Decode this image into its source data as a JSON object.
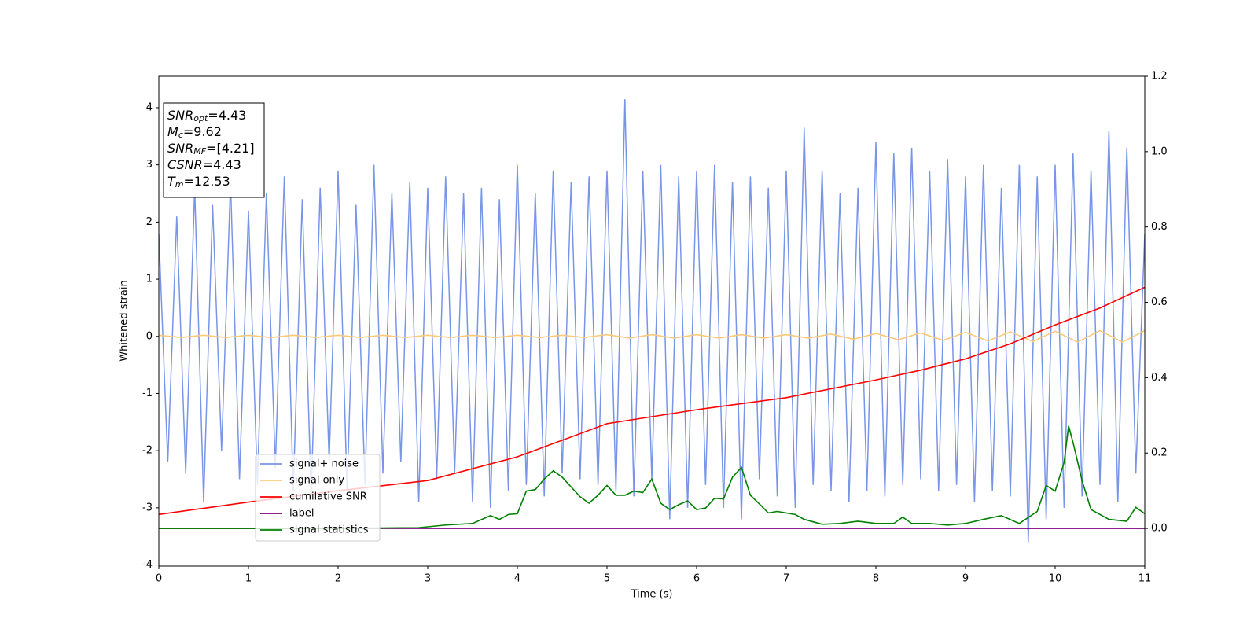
{
  "chart_data": {
    "type": "line",
    "xlabel": "Time (s)",
    "ylabel": "Whitened strain",
    "xlim": [
      0,
      11
    ],
    "xticks": [
      0,
      1,
      2,
      3,
      4,
      5,
      6,
      7,
      8,
      9,
      10,
      11
    ],
    "ylim": [
      -4.02,
      4.55
    ],
    "yticks": [
      -4,
      -3,
      -2,
      -1,
      0,
      1,
      2,
      3,
      4
    ],
    "y2lim": [
      -0.1,
      1.2
    ],
    "y2ticks": [
      {
        "value": 0,
        "label": "0.0"
      },
      0.2,
      0.4,
      0.6,
      0.8,
      {
        "value": 1,
        "label": "1.0"
      },
      1.2
    ],
    "legend": "lower left",
    "annotations": [
      {
        "symbol": "SNR",
        "subscript": "opt",
        "text": "=4.43"
      },
      {
        "symbol": "M",
        "subscript": "c",
        "text": "=9.62"
      },
      {
        "symbol": "SNR",
        "subscript": "MF",
        "text": "=[4.21]"
      },
      {
        "symbol": "CSNR",
        "text": "=4.43"
      },
      {
        "symbol": "T",
        "subscript": "m",
        "text": "=12.53"
      }
    ],
    "series": [
      {
        "name": "signal+ noise",
        "color": "#7895e8",
        "axis": "y",
        "x": [
          0,
          0.1,
          0.2,
          0.3,
          0.4,
          0.5,
          0.6,
          0.7,
          0.8,
          0.9,
          1,
          1.1,
          1.2,
          1.3,
          1.4,
          1.5,
          1.6,
          1.7,
          1.8,
          1.9,
          2,
          2.1,
          2.2,
          2.3,
          2.4,
          2.5,
          2.6,
          2.7,
          2.8,
          2.9,
          3,
          3.1,
          3.2,
          3.3,
          3.4,
          3.5,
          3.6,
          3.7,
          3.8,
          3.9,
          4,
          4.1,
          4.2,
          4.3,
          4.4,
          4.5,
          4.6,
          4.7,
          4.8,
          4.9,
          5,
          5.1,
          5.2,
          5.3,
          5.4,
          5.5,
          5.6,
          5.7,
          5.8,
          5.9,
          6,
          6.1,
          6.2,
          6.3,
          6.4,
          6.5,
          6.6,
          6.7,
          6.8,
          6.9,
          7,
          7.1,
          7.2,
          7.3,
          7.4,
          7.5,
          7.6,
          7.7,
          7.8,
          7.9,
          8,
          8.1,
          8.2,
          8.3,
          8.4,
          8.5,
          8.6,
          8.7,
          8.8,
          8.9,
          9,
          9.1,
          9.2,
          9.3,
          9.4,
          9.5,
          9.6,
          9.7,
          9.8,
          9.9,
          10,
          10.1,
          10.2,
          10.3,
          10.4,
          10.5,
          10.6,
          10.7,
          10.8,
          10.9,
          11
        ],
        "values": [
          1.8,
          -2.2,
          2.1,
          -2.4,
          2.6,
          -2.9,
          2.3,
          -2.0,
          2.7,
          -2.5,
          2.2,
          -2.6,
          2.5,
          -2.3,
          2.8,
          -2.7,
          2.4,
          -2.8,
          2.6,
          -2.2,
          2.9,
          -2.7,
          2.3,
          -2.6,
          3.0,
          -2.4,
          2.5,
          -2.2,
          2.7,
          -2.9,
          2.6,
          -2.5,
          2.8,
          -2.4,
          2.5,
          -2.9,
          2.6,
          -3.0,
          2.4,
          -2.7,
          3.0,
          -2.6,
          2.5,
          -2.8,
          2.9,
          -2.4,
          2.7,
          -2.5,
          2.8,
          -2.6,
          2.9,
          -2.7,
          4.15,
          -2.8,
          2.9,
          -2.5,
          3.0,
          -3.2,
          2.8,
          -3.0,
          2.9,
          -2.6,
          3.0,
          -3.0,
          2.7,
          -3.2,
          2.8,
          -2.5,
          2.6,
          -2.8,
          2.9,
          -3.0,
          3.65,
          -2.6,
          2.9,
          -2.7,
          2.5,
          -2.9,
          2.6,
          -2.7,
          3.4,
          -2.8,
          3.2,
          -2.6,
          3.3,
          -2.5,
          2.9,
          -2.7,
          3.1,
          -2.6,
          2.8,
          -2.9,
          3.0,
          -2.7,
          2.6,
          -2.8,
          3.0,
          -3.6,
          2.8,
          -3.2,
          3.0,
          -3.0,
          3.2,
          -2.8,
          2.9,
          -2.6,
          3.6,
          -2.9,
          3.3,
          -2.4,
          1.8
        ]
      },
      {
        "name": "signal only",
        "color": "#fdc877",
        "axis": "y",
        "x": [
          0,
          0.25,
          0.5,
          0.75,
          1,
          1.25,
          1.5,
          1.75,
          2,
          2.25,
          2.5,
          2.75,
          3,
          3.25,
          3.5,
          3.75,
          4,
          4.25,
          4.5,
          4.75,
          5,
          5.25,
          5.5,
          5.75,
          6,
          6.25,
          6.5,
          6.75,
          7,
          7.25,
          7.5,
          7.75,
          8,
          8.25,
          8.5,
          8.75,
          9,
          9.25,
          9.5,
          9.75,
          10,
          10.25,
          10.5,
          10.75,
          11
        ],
        "values": [
          0.02,
          -0.02,
          0.02,
          -0.02,
          0.02,
          -0.02,
          0.02,
          -0.02,
          0.02,
          -0.02,
          0.02,
          -0.02,
          0.02,
          -0.02,
          0.02,
          -0.02,
          0.02,
          -0.02,
          0.02,
          -0.02,
          0.03,
          -0.03,
          0.03,
          -0.03,
          0.03,
          -0.03,
          0.03,
          -0.03,
          0.03,
          -0.03,
          0.04,
          -0.05,
          0.05,
          -0.06,
          0.06,
          -0.07,
          0.07,
          -0.08,
          0.08,
          -0.09,
          0.09,
          -0.1,
          0.1,
          -0.1,
          0.1
        ]
      },
      {
        "name": "cumilative SNR",
        "color": "#ff0000",
        "axis": "y2",
        "x": [
          0,
          1,
          2,
          3,
          4,
          5,
          6,
          7,
          8,
          8.5,
          9,
          9.5,
          10,
          10.5,
          11
        ],
        "values": [
          0.037,
          0.07,
          0.1,
          0.127,
          0.19,
          0.278,
          0.315,
          0.347,
          0.394,
          0.42,
          0.45,
          0.49,
          0.54,
          0.585,
          0.64
        ]
      },
      {
        "name": "label",
        "color": "#800080",
        "axis": "y2",
        "x": [
          0,
          11
        ],
        "values": [
          0,
          0
        ]
      },
      {
        "name": "signal statistics",
        "color": "#008000",
        "axis": "y2",
        "x": [
          0,
          1,
          2,
          2.9,
          3.2,
          3.5,
          3.7,
          3.8,
          3.9,
          4,
          4.1,
          4.2,
          4.3,
          4.4,
          4.5,
          4.6,
          4.7,
          4.8,
          4.9,
          5,
          5.1,
          5.2,
          5.3,
          5.4,
          5.5,
          5.6,
          5.7,
          5.8,
          5.9,
          6,
          6.1,
          6.2,
          6.3,
          6.4,
          6.5,
          6.6,
          6.7,
          6.8,
          6.9,
          7,
          7.1,
          7.2,
          7.4,
          7.6,
          7.8,
          8,
          8.2,
          8.3,
          8.4,
          8.6,
          8.8,
          9,
          9.2,
          9.4,
          9.6,
          9.8,
          9.9,
          10,
          10.1,
          10.15,
          10.2,
          10.3,
          10.4,
          10.6,
          10.8,
          10.9,
          11
        ],
        "values": [
          0,
          0,
          0,
          0.002,
          0.009,
          0.013,
          0.034,
          0.024,
          0.037,
          0.039,
          0.099,
          0.103,
          0.131,
          0.153,
          0.136,
          0.11,
          0.084,
          0.067,
          0.088,
          0.114,
          0.088,
          0.088,
          0.099,
          0.095,
          0.131,
          0.067,
          0.05,
          0.063,
          0.073,
          0.05,
          0.054,
          0.08,
          0.078,
          0.136,
          0.162,
          0.088,
          0.065,
          0.041,
          0.045,
          0.041,
          0.037,
          0.024,
          0.011,
          0.013,
          0.019,
          0.013,
          0.013,
          0.03,
          0.013,
          0.013,
          0.009,
          0.013,
          0.024,
          0.034,
          0.013,
          0.045,
          0.114,
          0.099,
          0.175,
          0.272,
          0.228,
          0.127,
          0.05,
          0.024,
          0.019,
          0.056,
          0.039
        ]
      }
    ]
  }
}
